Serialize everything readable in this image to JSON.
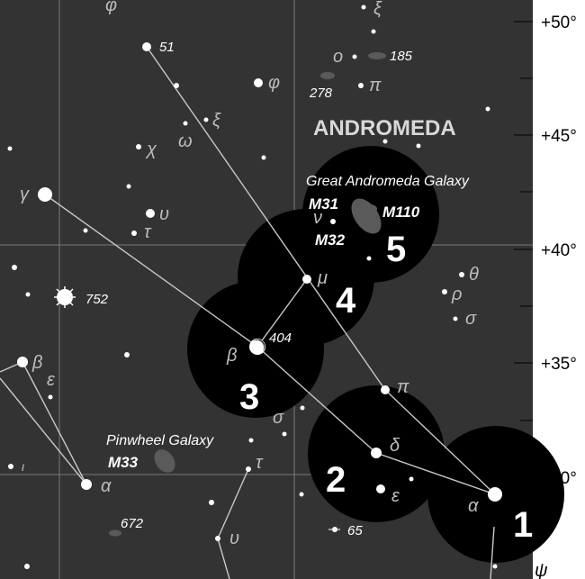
{
  "map": {
    "constellation_name": "ANDROMEDA",
    "declination_labels": [
      "+50°",
      "+45°",
      "+40°",
      "+35°",
      "+30°"
    ],
    "colors": {
      "sky": "#333333",
      "grid": "#7a7a7a",
      "lines": "#c8c8c8",
      "stars": "#ffffff",
      "labels": "#e0e0e0",
      "disc": "#000000",
      "galaxy": "#5a5a5a",
      "margin": "#ffffff"
    },
    "hop_steps": [
      {
        "label": "1"
      },
      {
        "label": "2"
      },
      {
        "label": "3"
      },
      {
        "label": "4"
      },
      {
        "label": "5"
      }
    ],
    "objects": {
      "galaxy_caption": "Great Andromeda Galaxy",
      "m31": "M31",
      "m32": "M32",
      "m110": "M110",
      "pinwheel_caption": "Pinwheel Galaxy",
      "m33": "M33"
    },
    "star_labels": {
      "s51": "51",
      "s185": "185",
      "s278": "278",
      "s752": "752",
      "s404": "404",
      "s672": "672",
      "s65": "65",
      "phi": "φ",
      "xi": "ξ",
      "omega": "ω",
      "chi": "χ",
      "gamma": "γ",
      "upsilon": "υ",
      "tau": "τ",
      "nu": "ν",
      "mu": "μ",
      "theta": "θ",
      "rho": "ρ",
      "sigma": "σ",
      "beta": "β",
      "epsilon": "ε",
      "alpha": "α",
      "iota": "ι",
      "pi": "π",
      "omicron": "ο",
      "delta": "δ",
      "psi": "ψ",
      "upsilon2": "υ",
      "tau2": "τ",
      "sigma2": "σ",
      "beta_and": "β",
      "pi2": "π",
      "epsilon2": "ε",
      "alpha_and": "α",
      "xi_top": "ξ",
      "phi_top": "φ"
    }
  }
}
